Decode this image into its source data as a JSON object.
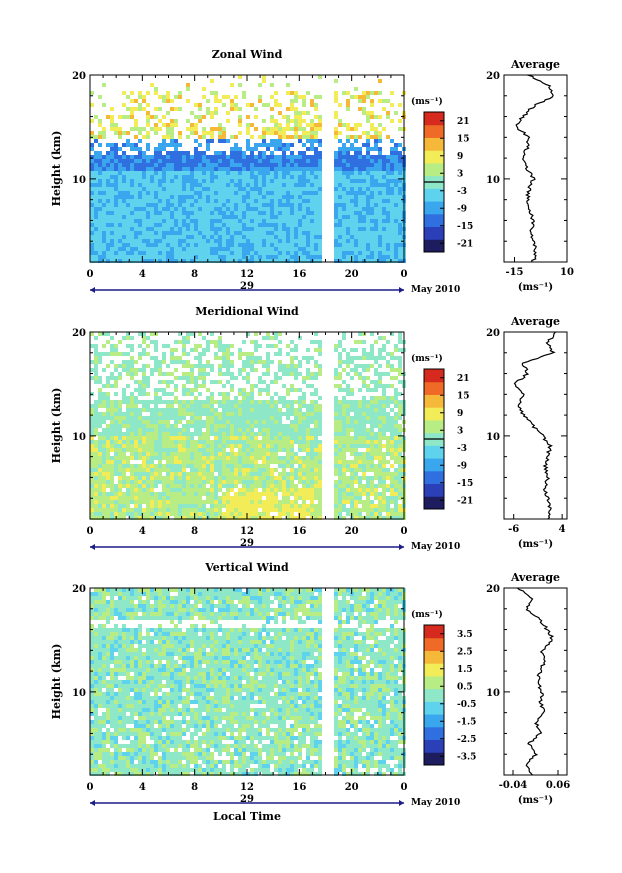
{
  "figure": {
    "x_label": "Local Time",
    "x_ticks": [
      "0",
      "4",
      "8",
      "12",
      "16",
      "20",
      "0"
    ],
    "date_label": "29",
    "month_label": "May 2010",
    "y_label": "Height (km)",
    "y_ticks": [
      "20",
      "10"
    ],
    "unit_label": "(ms⁻¹)",
    "avg_title": "Average"
  },
  "chart_data": [
    {
      "type": "heatmap",
      "title": "Zonal Wind",
      "xlabel": "Local Time",
      "ylabel": "Height (km)",
      "xlim": [
        0,
        24
      ],
      "ylim": [
        2,
        20
      ],
      "colorbar": {
        "ticks": [
          "21",
          "15",
          "9",
          "3",
          "-3",
          "-9",
          "-15",
          "-21"
        ],
        "range": [
          -24,
          24
        ]
      },
      "profile": {
        "title": "Average",
        "xlabel": "(ms⁻¹)",
        "x_ticks": [
          "-15",
          "10"
        ],
        "xlim": [
          -20,
          10
        ],
        "heights": [
          2,
          3,
          4,
          5,
          6,
          7,
          8,
          9,
          10,
          11,
          12,
          13,
          14,
          15,
          16,
          17,
          18,
          19,
          20
        ],
        "values": [
          -6,
          -5,
          -6,
          -7,
          -6,
          -8,
          -9,
          -8,
          -6,
          -9,
          -11,
          -9,
          -8,
          -14,
          -11,
          -6,
          4,
          1,
          -8
        ]
      }
    },
    {
      "type": "heatmap",
      "title": "Meridional Wind",
      "xlabel": "Local Time",
      "ylabel": "Height (km)",
      "xlim": [
        0,
        24
      ],
      "ylim": [
        2,
        20
      ],
      "colorbar": {
        "ticks": [
          "21",
          "15",
          "9",
          "3",
          "-3",
          "-9",
          "-15",
          "-21"
        ],
        "range": [
          -24,
          24
        ]
      },
      "profile": {
        "title": "Average",
        "xlabel": "(ms⁻¹)",
        "x_ticks": [
          "-6",
          "4"
        ],
        "xlim": [
          -8,
          5
        ],
        "heights": [
          2,
          3,
          4,
          5,
          6,
          7,
          8,
          9,
          10,
          11,
          12,
          13,
          14,
          15,
          16,
          17,
          18,
          19,
          20
        ],
        "values": [
          1,
          1.5,
          1,
          0.5,
          1,
          0.5,
          1,
          1.5,
          0,
          -2,
          -4,
          -5,
          -4,
          -6,
          -3,
          -4,
          2,
          1,
          3
        ]
      }
    },
    {
      "type": "heatmap",
      "title": "Vertical Wind",
      "xlabel": "Local Time",
      "ylabel": "Height (km)",
      "xlim": [
        0,
        24
      ],
      "ylim": [
        2,
        20
      ],
      "colorbar": {
        "ticks": [
          "3.5",
          "2.5",
          "1.5",
          "0.5",
          "-0.5",
          "-1.5",
          "-2.5",
          "-3.5"
        ],
        "range": [
          -4,
          4
        ]
      },
      "profile": {
        "title": "Average",
        "xlabel": "(ms⁻¹)",
        "x_ticks": [
          "-0.04",
          "0.06"
        ],
        "xlim": [
          -0.06,
          0.08
        ],
        "heights": [
          2,
          3,
          4,
          5,
          6,
          7,
          8,
          9,
          10,
          11,
          12,
          13,
          14,
          15,
          16,
          17,
          18,
          19,
          20
        ],
        "values": [
          0,
          -0.01,
          0.01,
          -0.005,
          0.02,
          0.01,
          0.03,
          0.02,
          0.025,
          0.015,
          0.02,
          0.03,
          0.025,
          0.05,
          0.035,
          0.02,
          -0.01,
          0.005,
          -0.03
        ]
      }
    }
  ]
}
